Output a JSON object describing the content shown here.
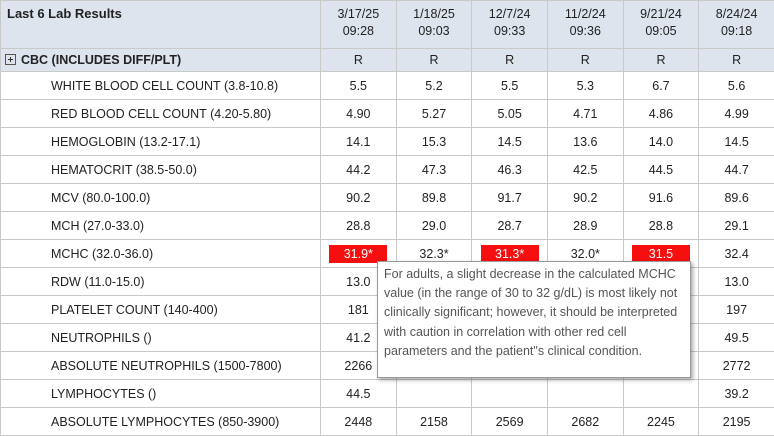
{
  "table_title": "Last 6 Lab Results",
  "dates": [
    {
      "date": "3/17/25",
      "time": "09:28"
    },
    {
      "date": "1/18/25",
      "time": "09:03"
    },
    {
      "date": "12/7/24",
      "time": "09:33"
    },
    {
      "date": "11/2/24",
      "time": "09:36"
    },
    {
      "date": "9/21/24",
      "time": "09:05"
    },
    {
      "date": "8/24/24",
      "time": "09:18"
    }
  ],
  "group": {
    "name": "CBC (INCLUDES DIFF/PLT)",
    "icon": "expand-plus-icon",
    "status": [
      "R",
      "R",
      "R",
      "R",
      "R",
      "R"
    ]
  },
  "abnormal_color": "#f50f0f",
  "rows": [
    {
      "name": "WHITE BLOOD CELL COUNT (3.8-10.8)",
      "values": [
        "5.5",
        "5.2",
        "5.5",
        "5.3",
        "6.7",
        "5.6"
      ],
      "abnormal": [
        false,
        false,
        false,
        false,
        false,
        false
      ]
    },
    {
      "name": "RED BLOOD CELL COUNT (4.20-5.80)",
      "values": [
        "4.90",
        "5.27",
        "5.05",
        "4.71",
        "4.86",
        "4.99"
      ],
      "abnormal": [
        false,
        false,
        false,
        false,
        false,
        false
      ]
    },
    {
      "name": "HEMOGLOBIN (13.2-17.1)",
      "values": [
        "14.1",
        "15.3",
        "14.5",
        "13.6",
        "14.0",
        "14.5"
      ],
      "abnormal": [
        false,
        false,
        false,
        false,
        false,
        false
      ]
    },
    {
      "name": "HEMATOCRIT (38.5-50.0)",
      "values": [
        "44.2",
        "47.3",
        "46.3",
        "42.5",
        "44.5",
        "44.7"
      ],
      "abnormal": [
        false,
        false,
        false,
        false,
        false,
        false
      ]
    },
    {
      "name": "MCV (80.0-100.0)",
      "values": [
        "90.2",
        "89.8",
        "91.7",
        "90.2",
        "91.6",
        "89.6"
      ],
      "abnormal": [
        false,
        false,
        false,
        false,
        false,
        false
      ]
    },
    {
      "name": "MCH (27.0-33.0)",
      "values": [
        "28.8",
        "29.0",
        "28.7",
        "28.9",
        "28.8",
        "29.1"
      ],
      "abnormal": [
        false,
        false,
        false,
        false,
        false,
        false
      ]
    },
    {
      "name": "MCHC (32.0-36.0)",
      "values": [
        "31.9*",
        "32.3*",
        "31.3*",
        "32.0*",
        "31.5",
        "32.4"
      ],
      "abnormal": [
        true,
        false,
        true,
        false,
        true,
        false
      ]
    },
    {
      "name": "RDW (11.0-15.0)",
      "values": [
        "13.0",
        "",
        "",
        "",
        "",
        "13.0"
      ],
      "abnormal": [
        false,
        false,
        false,
        false,
        false,
        false
      ]
    },
    {
      "name": "PLATELET COUNT (140-400)",
      "values": [
        "181",
        "",
        "",
        "",
        "",
        "197"
      ],
      "abnormal": [
        false,
        false,
        false,
        false,
        false,
        false
      ]
    },
    {
      "name": "NEUTROPHILS ()",
      "values": [
        "41.2",
        "",
        "",
        "",
        "",
        "49.5"
      ],
      "abnormal": [
        false,
        false,
        false,
        false,
        false,
        false
      ]
    },
    {
      "name": "ABSOLUTE NEUTROPHILS (1500-7800)",
      "values": [
        "2266",
        "",
        "",
        "",
        "",
        "2772"
      ],
      "abnormal": [
        false,
        false,
        false,
        false,
        false,
        false
      ]
    },
    {
      "name": "LYMPHOCYTES ()",
      "values": [
        "44.5",
        "",
        "",
        "",
        "",
        "39.2"
      ],
      "abnormal": [
        false,
        false,
        false,
        false,
        false,
        false
      ]
    },
    {
      "name": "ABSOLUTE LYMPHOCYTES (850-3900)",
      "values": [
        "2448",
        "2158",
        "2569",
        "2682",
        "2245",
        "2195"
      ],
      "abnormal": [
        false,
        false,
        false,
        false,
        false,
        false
      ]
    }
  ],
  "tooltip": {
    "text": "For adults, a slight decrease in the calculated MCHC value (in the range of 30 to 32 g/dL) is most likely not clinically significant; however, it should be interpreted with caution in correlation with other red cell parameters and the patient\"s clinical condition."
  }
}
